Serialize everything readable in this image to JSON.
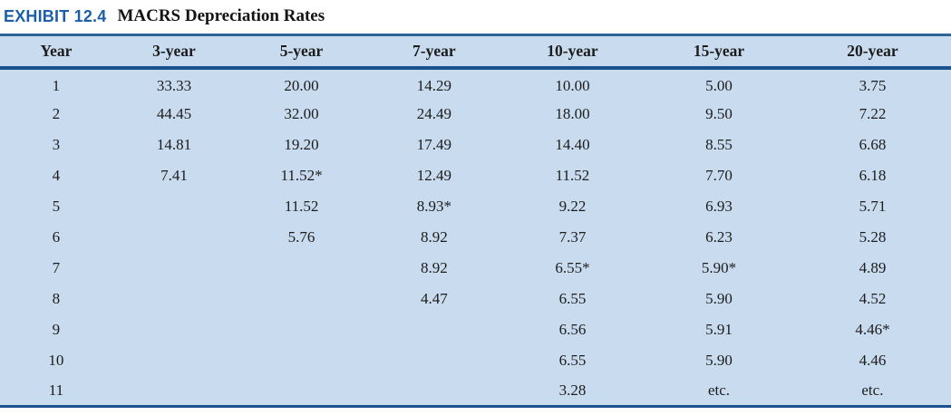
{
  "exhibit": {
    "label": "EXHIBIT 12.4",
    "title": "MACRS Depreciation Rates"
  },
  "colors": {
    "table_background": "#c9dbee",
    "border_dark_blue": "#19528e",
    "border_top_blue": "#2e6396",
    "exhibit_label_blue": "#1d5fa7",
    "text": "#1c1c1c"
  },
  "chart_data": {
    "type": "table",
    "title": "MACRS Depreciation Rates",
    "columns": [
      "Year",
      "3-year",
      "5-year",
      "7-year",
      "10-year",
      "15-year",
      "20-year"
    ],
    "column_widths_pct": [
      11.8,
      13.0,
      13.8,
      14.1,
      15.0,
      15.8,
      16.5
    ],
    "rows": [
      [
        "1",
        "33.33",
        "20.00",
        "14.29",
        "10.00",
        "5.00",
        "3.75"
      ],
      [
        "2",
        "44.45",
        "32.00",
        "24.49",
        "18.00",
        "9.50",
        "7.22"
      ],
      [
        "3",
        "14.81",
        "19.20",
        "17.49",
        "14.40",
        "8.55",
        "6.68"
      ],
      [
        "4",
        "7.41",
        "11.52*",
        "12.49",
        "11.52",
        "7.70",
        "6.18"
      ],
      [
        "5",
        "",
        "11.52",
        "8.93*",
        "9.22",
        "6.93",
        "5.71"
      ],
      [
        "6",
        "",
        "5.76",
        "8.92",
        "7.37",
        "6.23",
        "5.28"
      ],
      [
        "7",
        "",
        "",
        "8.92",
        "6.55*",
        "5.90*",
        "4.89"
      ],
      [
        "8",
        "",
        "",
        "4.47",
        "6.55",
        "5.90",
        "4.52"
      ],
      [
        "9",
        "",
        "",
        "",
        "6.56",
        "5.91",
        "4.46*"
      ],
      [
        "10",
        "",
        "",
        "",
        "6.55",
        "5.90",
        "4.46"
      ],
      [
        "11",
        "",
        "",
        "",
        "3.28",
        "etc.",
        "etc."
      ]
    ]
  }
}
